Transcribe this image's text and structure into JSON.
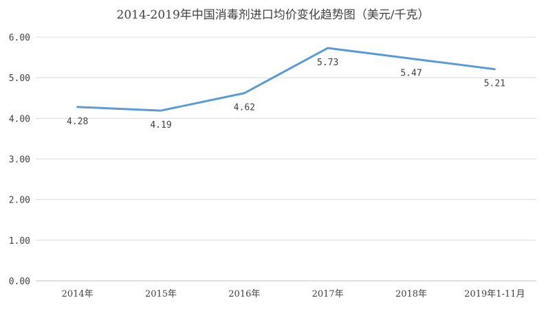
{
  "chart_data": {
    "type": "line",
    "title": "2014-2019年中国消毒剂进口均价变化趋势图（美元/千克）",
    "xlabel": "",
    "ylabel": "",
    "categories": [
      "2014年",
      "2015年",
      "2016年",
      "2017年",
      "2018年",
      "2019年1-11月"
    ],
    "series": [
      {
        "values": [
          4.28,
          4.19,
          4.62,
          5.73,
          5.47,
          5.21
        ]
      }
    ],
    "data_labels": [
      "4.28",
      "4.19",
      "4.62",
      "5.73",
      "5.47",
      "5.21"
    ],
    "ylim": [
      0,
      6
    ],
    "yticks": [
      "0.00",
      "1.00",
      "2.00",
      "3.00",
      "4.00",
      "5.00",
      "6.00"
    ],
    "grid": true,
    "legend": "none",
    "colors": {
      "line": "#5b9bd5",
      "grid": "#d9d9d9",
      "text": "#404040"
    }
  }
}
